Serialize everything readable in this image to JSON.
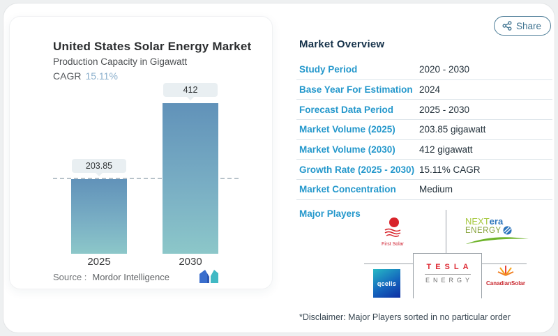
{
  "chart_data": {
    "type": "bar",
    "title": "United States Solar Energy Market",
    "subtitle": "Production Capacity in Gigawatt",
    "cagr_label": "CAGR",
    "cagr_value": "15.11%",
    "categories": [
      "2025",
      "2030"
    ],
    "values": [
      203.85,
      412
    ],
    "unit": "gigawatt",
    "reference_line": 203.85,
    "ylim": [
      0,
      430
    ],
    "bar_gradient_top": "#6192b9",
    "bar_gradient_bottom": "#8cc7c9"
  },
  "chart_card": {
    "source_label": "Source :",
    "source_value": "Mordor Intelligence",
    "logo_name": "Mordor Intelligence logo"
  },
  "overview": {
    "share_label": "Share",
    "title": "Market Overview",
    "rows": [
      {
        "label": "Study Period",
        "value": "2020 - 2030"
      },
      {
        "label": "Base Year For Estimation",
        "value": "2024"
      },
      {
        "label": "Forecast Data Period",
        "value": "2025 - 2030"
      },
      {
        "label": "Market Volume (2025)",
        "value": "203.85 gigawatt"
      },
      {
        "label": "Market Volume (2030)",
        "value": "412 gigawatt"
      },
      {
        "label": "Growth Rate (2025 - 2030)",
        "value": "15.11% CAGR"
      },
      {
        "label": "Market Concentration",
        "value": "Medium"
      }
    ],
    "major_players_label": "Major Players",
    "players": {
      "first_solar": {
        "name": "First Solar"
      },
      "nextera": {
        "line1a": "NEXT",
        "line1b": "era",
        "line2": "ENERGY"
      },
      "qcells": {
        "text": "Qcells"
      },
      "tesla": {
        "line1": "TESLA",
        "line2": "ENERGY"
      },
      "canadian_solar": {
        "name": "CanadianSolar"
      }
    },
    "disclaimer": "*Disclaimer: Major Players sorted in no particular order"
  },
  "colors": {
    "accent_blue": "#2598cc",
    "heading_navy": "#16324a",
    "share_teal": "#3f7390",
    "cagr_blue": "#8aafcc",
    "tesla_red": "#de2b35",
    "first_solar_red": "#cf2030",
    "canadian_red": "#c8252c"
  }
}
